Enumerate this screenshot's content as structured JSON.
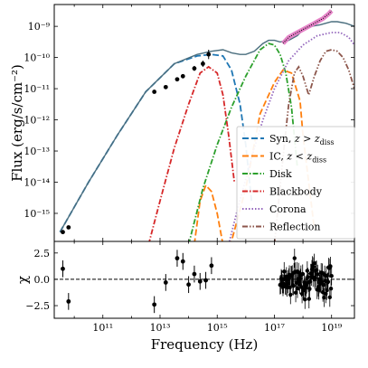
{
  "chart_data": [
    {
      "type": "line",
      "panel": "sed",
      "ylabel": "Flux (erg/s/cm⁻²)",
      "xlabel": "",
      "x_scale": "log",
      "y_scale": "log",
      "xlim_log10": [
        9.3,
        19.8
      ],
      "ylim_log10": [
        -15.9,
        -8.3
      ],
      "x_ticks_log10": [
        11,
        13,
        15,
        17,
        19
      ],
      "y_ticks_log10": [
        -15,
        -14,
        -13,
        -12,
        -11,
        -10,
        -9
      ],
      "y_tick_labels": [
        "10⁻¹⁵",
        "10⁻¹⁴",
        "10⁻¹³",
        "10⁻¹²",
        "10⁻¹¹",
        "10⁻¹⁰",
        "10⁻⁹"
      ],
      "grid": false,
      "legend_position": "lower-right",
      "series": [
        {
          "name": "Syn, z > z_diss",
          "style": "dashed",
          "color": "#1f77b4",
          "x_log10": [
            9.5,
            10.5,
            11.5,
            12.5,
            13.5,
            14.3,
            14.8,
            15.2,
            15.5,
            15.8,
            16.0,
            16.2
          ],
          "y_log10": [
            -15.6,
            -14.0,
            -12.5,
            -11.1,
            -10.2,
            -9.95,
            -9.9,
            -9.95,
            -10.4,
            -11.5,
            -12.8,
            -14.6
          ]
        },
        {
          "name": "IC, z < z_diss",
          "style": "dashed",
          "color": "#ff7f0e",
          "x_log10": [
            14.2,
            14.4,
            14.6,
            14.8,
            15.0,
            15.2,
            15.5,
            16.0,
            16.5,
            17.0,
            17.3,
            17.6,
            17.9,
            18.0,
            18.2,
            18.4
          ],
          "y_log10": [
            -16.0,
            -14.6,
            -14.1,
            -14.3,
            -15.0,
            -16.0,
            -15.9,
            -14.2,
            -11.8,
            -10.8,
            -10.4,
            -10.5,
            -11.4,
            -12.5,
            -14.0,
            -15.5
          ]
        },
        {
          "name": "Disk",
          "style": "dashdot",
          "color": "#2ca02c",
          "x_log10": [
            14.0,
            14.5,
            15.0,
            15.5,
            16.0,
            16.5,
            16.8,
            17.0,
            17.2,
            17.4,
            17.6,
            17.8
          ],
          "y_log10": [
            -16.0,
            -14.2,
            -12.8,
            -11.6,
            -10.6,
            -9.75,
            -9.55,
            -9.6,
            -9.9,
            -10.5,
            -11.6,
            -13.5
          ]
        },
        {
          "name": "Blackbody",
          "style": "dashdot",
          "color": "#d62728",
          "x_log10": [
            12.6,
            13.0,
            13.5,
            14.0,
            14.4,
            14.7,
            15.0,
            15.2,
            15.4,
            15.6
          ],
          "y_log10": [
            -16.0,
            -14.6,
            -12.9,
            -11.5,
            -10.5,
            -10.3,
            -10.5,
            -11.2,
            -12.5,
            -14.0
          ],
          "peak_marker_label": ""
        },
        {
          "name": "Corona",
          "style": "dotted",
          "color": "#9467bd",
          "x_log10": [
            15.4,
            15.7,
            16.0,
            16.3,
            16.6,
            17.0,
            17.5,
            18.0,
            18.5,
            19.0,
            19.3,
            19.6,
            19.8
          ],
          "y_log10": [
            -16.0,
            -14.9,
            -13.9,
            -12.9,
            -12.0,
            -11.0,
            -10.1,
            -9.6,
            -9.3,
            -9.2,
            -9.2,
            -9.35,
            -9.6
          ]
        },
        {
          "name": "Reflection",
          "style": "dashdotdot",
          "color": "#8c564b",
          "x_log10": [
            17.0,
            17.3,
            17.5,
            17.7,
            17.85,
            18.0,
            18.2,
            18.4,
            18.6,
            18.8,
            19.0,
            19.2,
            19.4,
            19.6,
            19.8
          ],
          "y_log10": [
            -16.0,
            -13.2,
            -11.5,
            -10.5,
            -10.3,
            -10.6,
            -11.2,
            -10.6,
            -10.1,
            -9.8,
            -9.75,
            -9.8,
            -10.0,
            -10.4,
            -11.0
          ]
        },
        {
          "name": "",
          "style": "solid",
          "color": "#4a6e7e",
          "role": "total",
          "x_log10": [
            9.5,
            10.5,
            11.5,
            12.5,
            13.5,
            14.3,
            14.8,
            15.2,
            15.5,
            15.8,
            16.0,
            16.3,
            16.6,
            16.8,
            17.0,
            17.2,
            17.5,
            17.8,
            18.0,
            18.3,
            18.6,
            18.8,
            19.0,
            19.2,
            19.5,
            19.8
          ],
          "y_log10": [
            -15.6,
            -14.0,
            -12.5,
            -11.1,
            -10.2,
            -9.9,
            -9.8,
            -9.75,
            -9.85,
            -9.9,
            -9.9,
            -9.8,
            -9.55,
            -9.45,
            -9.45,
            -9.5,
            -9.45,
            -9.3,
            -9.1,
            -9.0,
            -8.95,
            -8.9,
            -8.85,
            -8.85,
            -8.9,
            -9.0
          ]
        }
      ],
      "data_points": {
        "x_log10": [
          9.6,
          9.8,
          12.8,
          13.2,
          13.6,
          13.8,
          14.2,
          14.5,
          14.7
        ],
        "y_log10": [
          -15.6,
          -15.45,
          -11.1,
          -10.95,
          -10.7,
          -10.6,
          -10.35,
          -10.2,
          -9.9
        ],
        "yerr_log10": [
          0.05,
          0.05,
          0.05,
          0.05,
          0.06,
          0.06,
          0.08,
          0.1,
          0.15
        ]
      },
      "xray_band": {
        "color": "#e377c2",
        "x_log10": [
          17.3,
          17.5,
          17.7,
          17.9,
          18.1,
          18.3,
          18.5,
          18.7,
          18.9,
          19.0
        ],
        "y_log10": [
          -9.55,
          -9.35,
          -9.25,
          -9.15,
          -9.05,
          -8.95,
          -8.85,
          -8.75,
          -8.6,
          -8.5
        ]
      }
    },
    {
      "type": "scatter",
      "panel": "residuals",
      "ylabel": "χ",
      "xlabel": "Frequency (Hz)",
      "x_scale": "log",
      "xlim_log10": [
        9.3,
        19.8
      ],
      "ylim": [
        -3.7,
        3.6
      ],
      "y_ticks": [
        -2.5,
        0.0,
        2.5
      ],
      "y_tick_labels": [
        "−2.5",
        "0.0",
        "2.5"
      ],
      "x_ticks_log10": [
        11,
        13,
        15,
        17,
        19
      ],
      "x_tick_labels": [
        "10¹¹",
        "10¹³",
        "10¹⁵",
        "10¹⁷",
        "10¹⁹"
      ],
      "reference_line": 0,
      "x_log10": [
        9.6,
        9.8,
        12.8,
        13.2,
        13.6,
        13.8,
        14.0,
        14.2,
        14.4,
        14.6,
        14.8
      ],
      "y": [
        1.0,
        -2.1,
        -2.4,
        -0.3,
        2.0,
        1.7,
        -0.5,
        0.5,
        -0.2,
        -0.1,
        1.3
      ],
      "yerr": [
        0.8,
        0.8,
        0.8,
        0.8,
        0.8,
        0.8,
        0.8,
        0.8,
        0.8,
        0.8,
        0.8
      ],
      "xray_cluster": {
        "x_log10_range": [
          17.2,
          19.0
        ],
        "y_range": [
          -2.5,
          2.5
        ],
        "n_points": 90
      }
    }
  ],
  "legend": {
    "entries": [
      {
        "series": "Syn",
        "label_main": "Syn, ",
        "label_math": "z > z",
        "label_sub": "diss",
        "color": "#1f77b4",
        "dash": "7,3"
      },
      {
        "series": "IC",
        "label_main": "IC, ",
        "label_math": "z < z",
        "label_sub": "diss",
        "color": "#ff7f0e",
        "dash": "7,3"
      },
      {
        "series": "Disk",
        "label_main": "Disk",
        "label_math": "",
        "label_sub": "",
        "color": "#2ca02c",
        "dash": "6,2,1.5,2"
      },
      {
        "series": "Blackbody",
        "label_main": "Blackbody",
        "label_math": "",
        "label_sub": "",
        "color": "#d62728",
        "dash": "6,2,1.5,2"
      },
      {
        "series": "Corona",
        "label_main": "Corona",
        "label_math": "",
        "label_sub": "",
        "color": "#9467bd",
        "dash": "1.5,2"
      },
      {
        "series": "Reflection",
        "label_main": "Reflection",
        "label_math": "",
        "label_sub": "",
        "color": "#8c564b",
        "dash": "6,2,1.5,2,1.5,2"
      }
    ]
  }
}
